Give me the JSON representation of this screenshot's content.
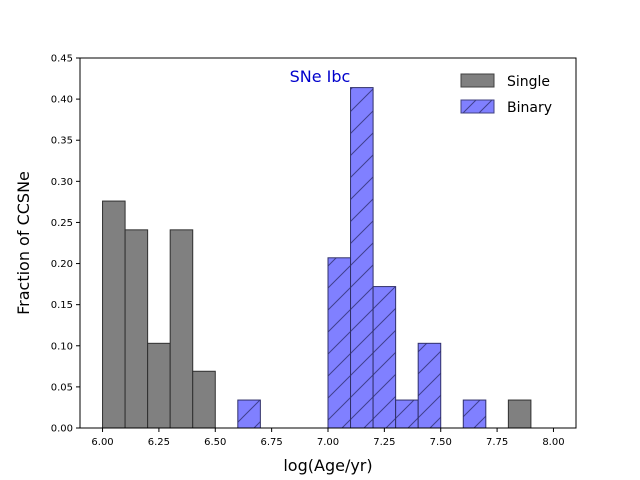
{
  "chart_data": {
    "type": "bar",
    "annotation": "SNe Ibc",
    "xlabel": "log(Age/yr)",
    "ylabel": "Fraction of CCSNe",
    "xlim": [
      5.9,
      8.1
    ],
    "ylim": [
      0,
      0.45
    ],
    "bin_width": 0.1,
    "xticks": [
      6.0,
      6.25,
      6.5,
      6.75,
      7.0,
      7.25,
      7.5,
      7.75,
      8.0
    ],
    "xtick_labels": [
      "6.00",
      "6.25",
      "6.50",
      "6.75",
      "7.00",
      "7.25",
      "7.50",
      "7.75",
      "8.00"
    ],
    "yticks": [
      0.0,
      0.05,
      0.1,
      0.15,
      0.2,
      0.25,
      0.3,
      0.35,
      0.4,
      0.45
    ],
    "ytick_labels": [
      "0.00",
      "0.05",
      "0.10",
      "0.15",
      "0.20",
      "0.25",
      "0.30",
      "0.35",
      "0.40",
      "0.45"
    ],
    "legend_position": "top-right",
    "grid": false,
    "series": [
      {
        "name": "Single",
        "color": "#808080",
        "hatch": "none",
        "bins": [
          {
            "x": 6.0,
            "value": 0.276
          },
          {
            "x": 6.1,
            "value": 0.241
          },
          {
            "x": 6.2,
            "value": 0.103
          },
          {
            "x": 6.3,
            "value": 0.241
          },
          {
            "x": 6.4,
            "value": 0.069
          },
          {
            "x": 7.8,
            "value": 0.034
          }
        ]
      },
      {
        "name": "Binary",
        "color": "#8080ff",
        "hatch": "diagonal",
        "bins": [
          {
            "x": 6.6,
            "value": 0.034
          },
          {
            "x": 7.0,
            "value": 0.207
          },
          {
            "x": 7.1,
            "value": 0.414
          },
          {
            "x": 7.2,
            "value": 0.172
          },
          {
            "x": 7.3,
            "value": 0.034
          },
          {
            "x": 7.4,
            "value": 0.103
          },
          {
            "x": 7.6,
            "value": 0.034
          }
        ]
      }
    ]
  }
}
